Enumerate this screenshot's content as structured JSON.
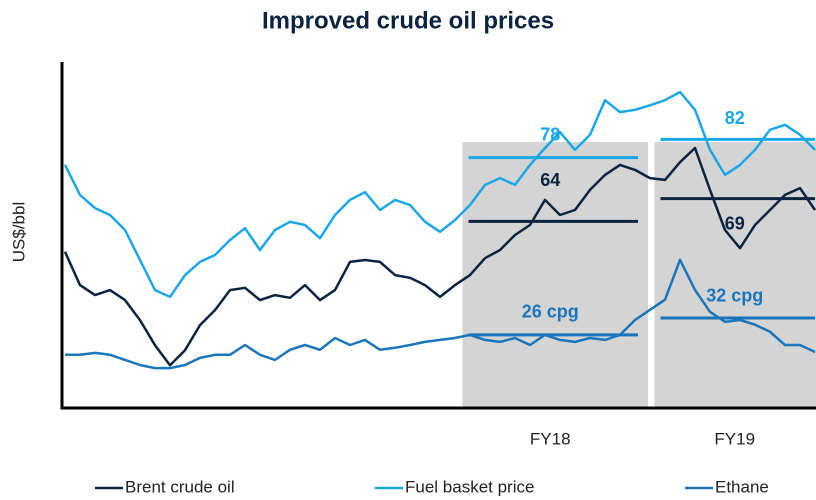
{
  "chart_data": {
    "type": "line",
    "title": "Improved crude oil prices",
    "y_label": "US$/bbl",
    "x": [
      0,
      1,
      2,
      3,
      4,
      5,
      6,
      7,
      8,
      9,
      10,
      11,
      12,
      13,
      14,
      15,
      16,
      17,
      18,
      19,
      20,
      21,
      22,
      23,
      24,
      25,
      26,
      27,
      28,
      29,
      30,
      31,
      32,
      33,
      34,
      35,
      36,
      37,
      38,
      39,
      40,
      41,
      42,
      43,
      44,
      45,
      46,
      47,
      48,
      49,
      50
    ],
    "xlim": [
      0,
      50
    ],
    "ylim": [
      23,
      99
    ],
    "y2lim": [
      0,
      123
    ],
    "legend": "bottom",
    "periods": [
      {
        "name": "FY18",
        "x": [
          26.5,
          38.2
        ]
      },
      {
        "name": "FY19",
        "x": [
          39.3,
          50
        ]
      }
    ],
    "series": [
      {
        "name": "Brent crude oil",
        "color": "#0c2340",
        "values": [
          57.3,
          50.0,
          47.8,
          48.9,
          46.7,
          42.3,
          36.8,
          32.4,
          35.7,
          41.2,
          44.5,
          48.9,
          49.4,
          46.7,
          47.8,
          47.2,
          50.0,
          46.7,
          48.9,
          55.1,
          55.5,
          55.1,
          52.2,
          51.6,
          50.0,
          47.4,
          50.0,
          52.2,
          55.9,
          57.7,
          61.0,
          63.2,
          68.7,
          65.4,
          66.5,
          70.9,
          74.2,
          76.4,
          75.3,
          73.5,
          73.1,
          77.0,
          80.1,
          70.9,
          62.1,
          58.1,
          63.2,
          66.5,
          69.8,
          71.3,
          66.5
        ],
        "averages": [
          64,
          69
        ]
      },
      {
        "name": "Fuel basket price",
        "color": "#1aa7e6",
        "values": [
          76.4,
          69.8,
          66.9,
          65.4,
          62.1,
          55.5,
          48.9,
          47.4,
          52.2,
          55.1,
          56.6,
          59.9,
          62.5,
          57.7,
          62.1,
          63.9,
          63.2,
          60.3,
          65.4,
          68.7,
          70.4,
          66.5,
          68.7,
          67.6,
          63.9,
          61.7,
          64.3,
          67.6,
          72.0,
          73.5,
          72.0,
          76.4,
          80.1,
          83.6,
          79.7,
          83.0,
          90.6,
          88.0,
          88.5,
          89.5,
          90.6,
          92.4,
          88.5,
          79.7,
          74.2,
          76.4,
          79.7,
          84.1,
          85.2,
          83.0,
          79.7
        ],
        "averages": [
          78,
          82
        ]
      },
      {
        "name": "Ethane",
        "color": "#1b75bb",
        "axis": "y2",
        "values": [
          18.9,
          18.9,
          19.6,
          18.9,
          17.1,
          15.3,
          14.2,
          14.2,
          15.3,
          17.8,
          18.9,
          18.9,
          22.4,
          18.9,
          17.1,
          20.7,
          22.4,
          20.7,
          24.9,
          22.4,
          24.2,
          20.7,
          21.4,
          22.4,
          23.5,
          24.2,
          24.9,
          26.0,
          24.2,
          23.5,
          24.9,
          22.4,
          26.0,
          24.2,
          23.5,
          24.9,
          24.2,
          26.0,
          31.3,
          34.9,
          38.5,
          52.7,
          42.0,
          34.2,
          30.6,
          31.3,
          29.6,
          27.1,
          22.4,
          22.4,
          19.9
        ],
        "averages": [
          {
            "value": 26,
            "label": "26 cpg"
          },
          {
            "value": 32,
            "label": "32 cpg"
          }
        ]
      }
    ]
  }
}
